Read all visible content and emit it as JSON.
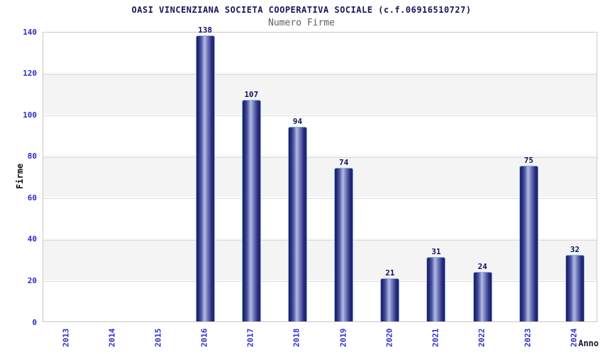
{
  "chart_data": {
    "type": "bar",
    "title": "OASI VINCENZIANA SOCIETA COOPERATIVA SOCIALE (c.f.06916510727)",
    "subtitle": "Numero Firme",
    "xlabel": "Anno",
    "ylabel": "Firme",
    "categories": [
      "2013",
      "2014",
      "2015",
      "2016",
      "2017",
      "2018",
      "2019",
      "2020",
      "2021",
      "2022",
      "2023",
      "2024"
    ],
    "values": [
      null,
      null,
      null,
      138,
      107,
      94,
      74,
      21,
      31,
      24,
      75,
      32
    ],
    "ylim": [
      0,
      140
    ],
    "ytick_step": 20,
    "yticks": [
      0,
      20,
      40,
      60,
      80,
      100,
      120,
      140
    ],
    "grid": "horizontal-on",
    "legend": "none",
    "colors": {
      "bar_dark": "#1e1e6a",
      "bar_highlight": "#b2bae4",
      "bar_border": "#84b8e8",
      "tick_label": "#2d2dd0",
      "value_label": "#10105e",
      "title": "#16165c",
      "subtitle": "#5f5f5f",
      "band": "#f4f4f4",
      "gridline": "#dcdcdc",
      "plot_border": "#c9c9c9"
    }
  }
}
